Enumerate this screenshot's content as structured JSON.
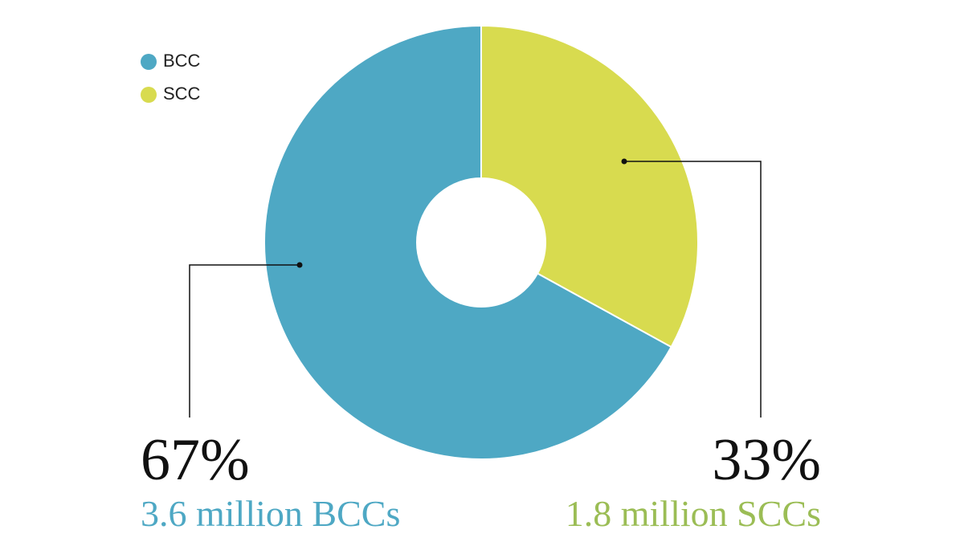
{
  "chart_data": {
    "type": "donut",
    "categories": [
      "BCC",
      "SCC"
    ],
    "values": [
      67,
      33
    ],
    "value_labels": [
      "67%",
      "33%"
    ],
    "annotations": [
      "3.6 million BCCs",
      "1.8 million SCCs"
    ],
    "colors": [
      "#4ea8c4",
      "#d8db4f"
    ],
    "annotation_colors": [
      "#4ea8c4",
      "#9bbd55"
    ],
    "legend": "top-left"
  }
}
